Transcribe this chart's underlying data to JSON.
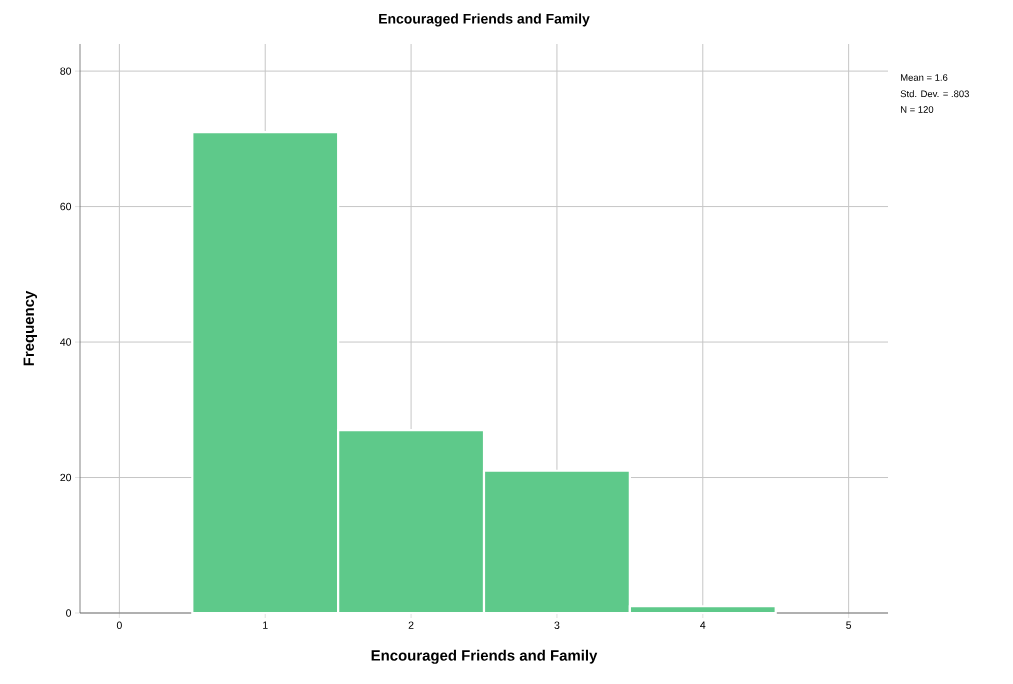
{
  "chart_data": {
    "type": "histogram",
    "title": "Encouraged Friends and Family",
    "xlabel": "Encouraged Friends and Family",
    "ylabel": "Frequency",
    "bins": [
      0.5,
      1.5,
      2.5,
      3.5,
      4.5
    ],
    "values": [
      71,
      27,
      21,
      1
    ],
    "color": "#5ec98a",
    "xlim": [
      -0.27,
      5.27
    ],
    "ylim": [
      0,
      84
    ],
    "xticks": [
      0,
      1,
      2,
      3,
      4,
      5
    ],
    "yticks": [
      0,
      20,
      40,
      60,
      80
    ],
    "grid": true,
    "annotations": [
      "Mean = 1.6",
      "Std. Dev. = .803",
      "N = 120"
    ]
  }
}
